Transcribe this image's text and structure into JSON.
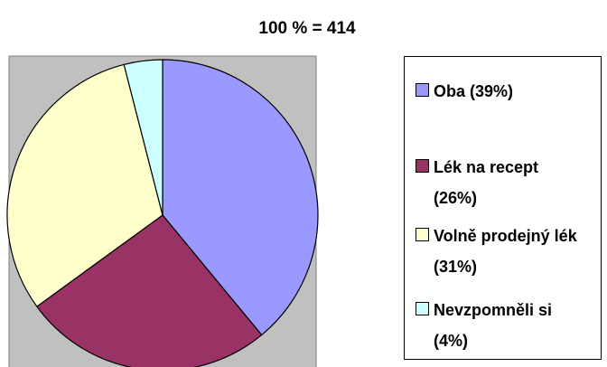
{
  "chart_data": {
    "type": "pie",
    "title": "100 % = 414",
    "categories": [
      "Oba (39%)",
      "Lék na recept (26%)",
      "Volně prodejný lék (31%)",
      "Nevzpomněli si (4%)"
    ],
    "values": [
      39,
      26,
      31,
      4
    ],
    "colors": [
      "#9999ff",
      "#993366",
      "#ffffcc",
      "#ccffff"
    ]
  }
}
